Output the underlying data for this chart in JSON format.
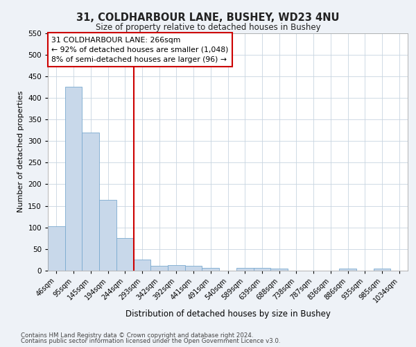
{
  "title_line1": "31, COLDHARBOUR LANE, BUSHEY, WD23 4NU",
  "title_line2": "Size of property relative to detached houses in Bushey",
  "xlabel": "Distribution of detached houses by size in Bushey",
  "ylabel": "Number of detached properties",
  "categories": [
    "46sqm",
    "95sqm",
    "145sqm",
    "194sqm",
    "244sqm",
    "293sqm",
    "342sqm",
    "392sqm",
    "441sqm",
    "491sqm",
    "540sqm",
    "589sqm",
    "639sqm",
    "688sqm",
    "738sqm",
    "787sqm",
    "836sqm",
    "886sqm",
    "935sqm",
    "985sqm",
    "1034sqm"
  ],
  "values": [
    103,
    425,
    320,
    163,
    75,
    26,
    11,
    13,
    11,
    6,
    0,
    6,
    6,
    5,
    0,
    0,
    0,
    5,
    0,
    5,
    0
  ],
  "bar_color": "#c8d8ea",
  "bar_edge_color": "#7aaad0",
  "vline_index": 5,
  "vline_color": "#cc0000",
  "annotation_text": "31 COLDHARBOUR LANE: 266sqm\n← 92% of detached houses are smaller (1,048)\n8% of semi-detached houses are larger (96) →",
  "annotation_box_color": "#cc0000",
  "ylim": [
    0,
    550
  ],
  "yticks": [
    0,
    50,
    100,
    150,
    200,
    250,
    300,
    350,
    400,
    450,
    500,
    550
  ],
  "footnote_line1": "Contains HM Land Registry data © Crown copyright and database right 2024.",
  "footnote_line2": "Contains public sector information licensed under the Open Government Licence v3.0.",
  "bg_color": "#eef2f7",
  "plot_bg_color": "#ffffff",
  "grid_color": "#c8d4e0"
}
